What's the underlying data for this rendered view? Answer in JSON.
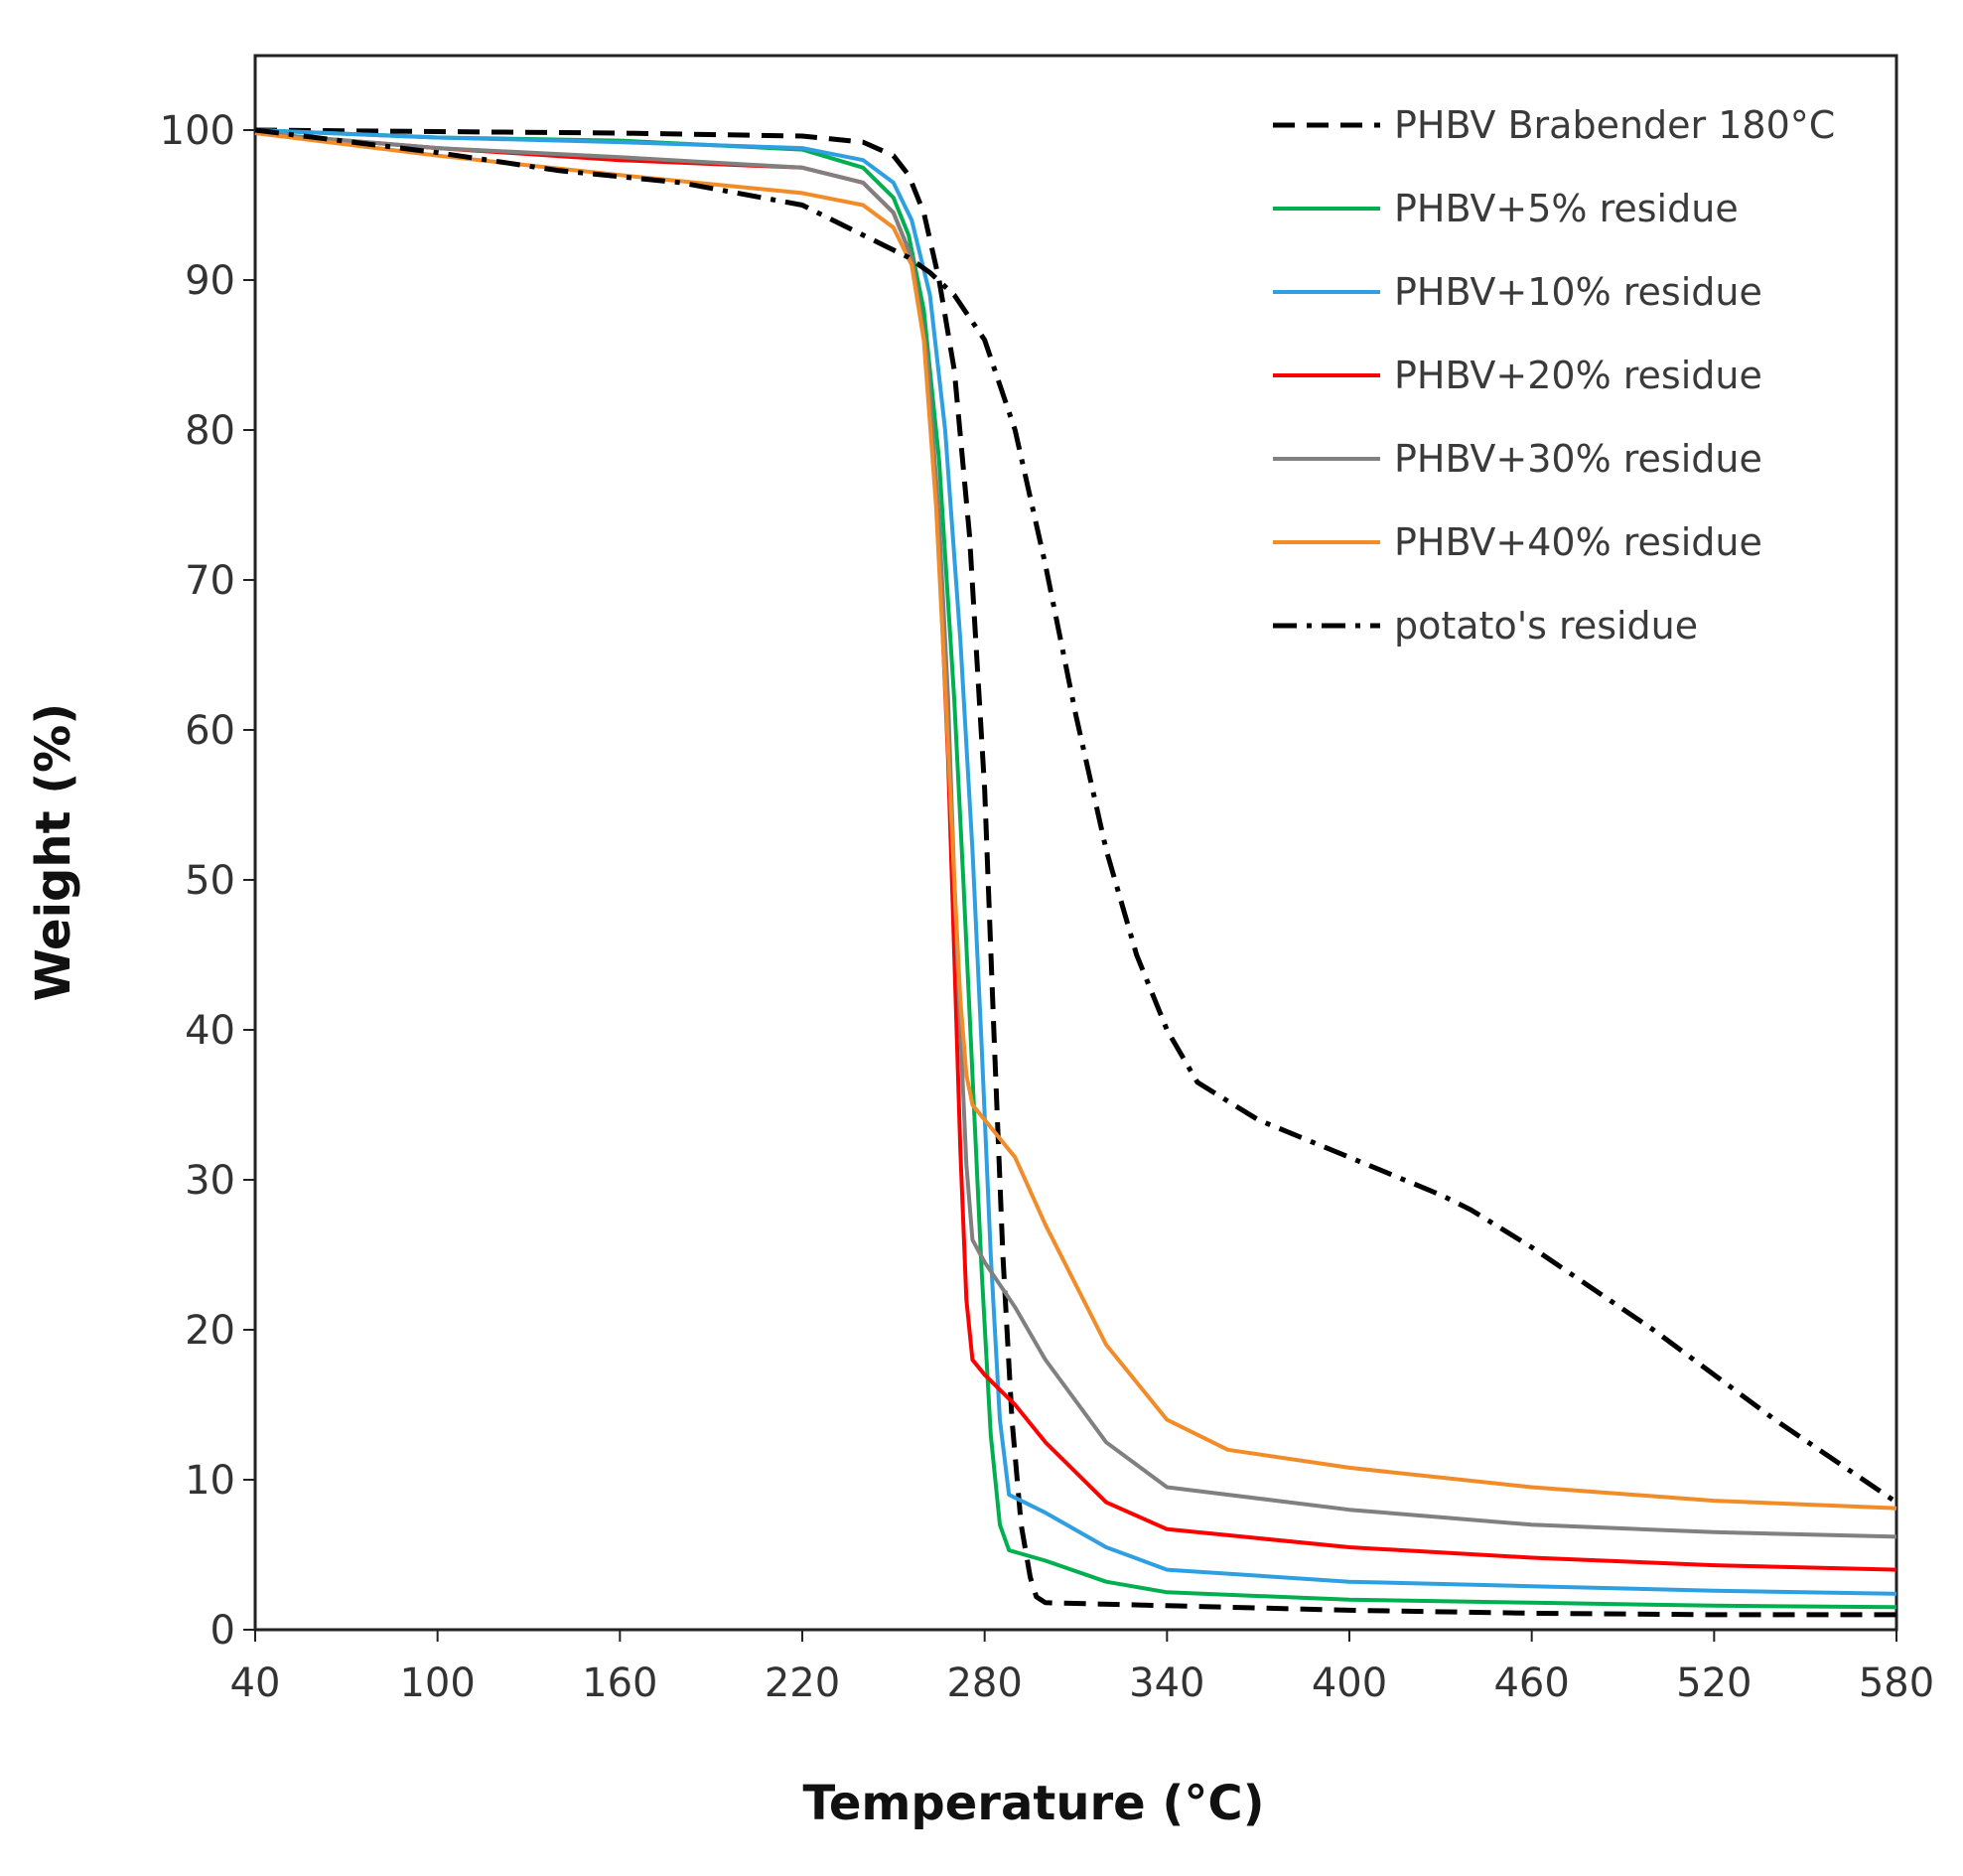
{
  "chart_data": {
    "type": "line",
    "title": "",
    "xlabel": "Temperature (°C)",
    "ylabel": "Weight (%)",
    "xlim": [
      40,
      580
    ],
    "ylim": [
      0,
      105
    ],
    "xticks": [
      40,
      100,
      160,
      220,
      280,
      340,
      400,
      460,
      520,
      580
    ],
    "yticks": [
      0,
      10,
      20,
      30,
      40,
      50,
      60,
      70,
      80,
      90,
      100
    ],
    "grid": false,
    "legend_position": "top-right",
    "series": [
      {
        "name": "PHBV Brabender 180°C",
        "color": "#000000",
        "dash": "dashed",
        "x": [
          40,
          100,
          160,
          220,
          240,
          250,
          255,
          260,
          265,
          270,
          275,
          280,
          283,
          286,
          289,
          292,
          295,
          297,
          300,
          340,
          400,
          460,
          520,
          580
        ],
        "y": [
          100,
          99.9,
          99.8,
          99.6,
          99.2,
          98.3,
          97,
          94.5,
          90,
          84,
          73,
          56,
          40,
          25,
          14,
          7,
          3.5,
          2.2,
          1.8,
          1.6,
          1.3,
          1.1,
          1,
          1
        ]
      },
      {
        "name": "PHBV+5% residue",
        "color": "#00b050",
        "dash": "solid",
        "x": [
          40,
          100,
          160,
          220,
          240,
          250,
          255,
          260,
          265,
          270,
          273,
          276,
          279,
          282,
          285,
          288,
          300,
          320,
          340,
          400,
          460,
          520,
          580
        ],
        "y": [
          100,
          99.5,
          99.3,
          98.7,
          97.5,
          95.5,
          93,
          88,
          78,
          62,
          50,
          37,
          24,
          13,
          7,
          5.3,
          4.6,
          3.2,
          2.5,
          2,
          1.8,
          1.6,
          1.5
        ]
      },
      {
        "name": "PHBV+10% residue",
        "color": "#2e9fe0",
        "dash": "solid",
        "x": [
          40,
          100,
          160,
          220,
          240,
          250,
          256,
          262,
          267,
          272,
          276,
          279,
          282,
          285,
          288,
          300,
          320,
          340,
          400,
          460,
          520,
          580
        ],
        "y": [
          100,
          99.5,
          99.2,
          98.8,
          98,
          96.5,
          94,
          89,
          80,
          66,
          52,
          39,
          25,
          14,
          9,
          7.8,
          5.5,
          4,
          3.2,
          2.9,
          2.6,
          2.4
        ]
      },
      {
        "name": "PHBV+20% residue",
        "color": "#ff0000",
        "dash": "solid",
        "x": [
          40,
          100,
          160,
          220,
          240,
          250,
          256,
          261,
          265,
          268,
          270,
          272,
          274,
          276,
          280,
          290,
          300,
          320,
          340,
          400,
          460,
          520,
          580
        ],
        "y": [
          99.8,
          98.8,
          98,
          97.5,
          96.5,
          94.5,
          91.5,
          85,
          72,
          58,
          45,
          32,
          22,
          18,
          17,
          15,
          12.5,
          8.5,
          6.7,
          5.5,
          4.8,
          4.3,
          4
        ]
      },
      {
        "name": "PHBV+30% residue",
        "color": "#808080",
        "dash": "solid",
        "x": [
          40,
          100,
          160,
          220,
          240,
          250,
          256,
          261,
          265,
          268,
          270,
          272,
          274,
          276,
          280,
          290,
          300,
          320,
          340,
          400,
          460,
          520,
          580
        ],
        "y": [
          99.8,
          98.8,
          98.2,
          97.5,
          96.5,
          94.5,
          91.5,
          85,
          74,
          62,
          50,
          40,
          31,
          26,
          24.5,
          21.5,
          18,
          12.5,
          9.5,
          8,
          7,
          6.5,
          6.2
        ]
      },
      {
        "name": "PHBV+40% residue",
        "color": "#f28c28",
        "dash": "solid",
        "x": [
          40,
          100,
          160,
          220,
          240,
          250,
          256,
          260,
          264,
          267,
          270,
          272,
          274,
          276,
          280,
          290,
          300,
          320,
          340,
          360,
          400,
          460,
          520,
          580
        ],
        "y": [
          99.8,
          98.3,
          97,
          95.8,
          95,
          93.5,
          91,
          86,
          75,
          63,
          50,
          42,
          37,
          35,
          34,
          31.5,
          27,
          19,
          14,
          12,
          10.8,
          9.5,
          8.6,
          8.1
        ]
      },
      {
        "name": "potato's residue",
        "color": "#000000",
        "dash": "dashdot",
        "x": [
          40,
          100,
          140,
          180,
          220,
          240,
          255,
          262,
          270,
          280,
          290,
          300,
          310,
          320,
          330,
          340,
          350,
          370,
          400,
          430,
          440,
          460,
          500,
          540,
          580
        ],
        "y": [
          100,
          98.5,
          97.3,
          96.5,
          95,
          93,
          91.5,
          90.5,
          89,
          86,
          80,
          71,
          61,
          52,
          45,
          40,
          36.5,
          34,
          31.5,
          29,
          28,
          25.5,
          20,
          14,
          8.5
        ]
      }
    ]
  }
}
